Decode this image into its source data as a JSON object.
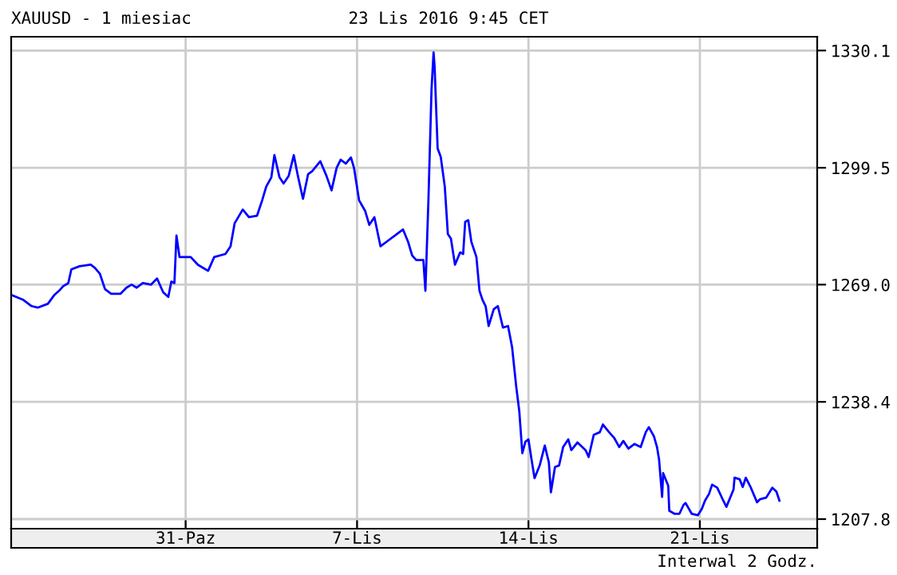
{
  "chart_data": {
    "type": "line",
    "title": "XAUUSD - 1 miesiac",
    "subtitle": "23 Lis 2016 9:45 CET",
    "annotations": [
      "Interwal 2 Godz."
    ],
    "x": [
      "2016-10-23T22:00",
      "2016-10-24T09:00",
      "2016-10-24T17:00",
      "2016-10-24T23:00",
      "2016-10-25T09:00",
      "2016-10-25T15:00",
      "2016-10-25T20:00",
      "2016-10-26T00:00",
      "2016-10-26T05:00",
      "2016-10-26T08:00",
      "2016-10-26T16:00",
      "2016-10-27T03:00",
      "2016-10-27T07:00",
      "2016-10-27T12:00",
      "2016-10-27T17:00",
      "2016-10-27T23:00",
      "2016-10-28T08:00",
      "2016-10-28T14:00",
      "2016-10-28T19:00",
      "2016-10-29T00:00",
      "2016-10-29T06:00",
      "2016-10-29T14:00",
      "2016-10-29T20:00",
      "2016-10-30T02:00",
      "2016-10-30T07:00",
      "2016-10-30T10:00",
      "2016-10-30T13:00",
      "2016-10-30T15:00",
      "2016-10-30T18:00",
      "2016-10-31T05:00",
      "2016-10-31T12:00",
      "2016-10-31T22:00",
      "2016-11-01T04:00",
      "2016-11-01T15:00",
      "2016-11-01T20:00",
      "2016-11-02T00:00",
      "2016-11-02T08:00",
      "2016-11-02T14:00",
      "2016-11-02T22:00",
      "2016-11-03T03:00",
      "2016-11-03T07:00",
      "2016-11-03T12:00",
      "2016-11-03T15:00",
      "2016-11-03T20:00",
      "2016-11-04T00:00",
      "2016-11-04T05:00",
      "2016-11-04T10:00",
      "2016-11-04T14:00",
      "2016-11-04T19:00",
      "2016-11-05T00:00",
      "2016-11-05T04:00",
      "2016-11-05T12:00",
      "2016-11-05T18:00",
      "2016-11-05T23:00",
      "2016-11-06T04:00",
      "2016-11-06T08:00",
      "2016-11-06T13:00",
      "2016-11-06T18:00",
      "2016-11-06T21:00",
      "2016-11-07T02:00",
      "2016-11-07T08:00",
      "2016-11-07T12:00",
      "2016-11-07T17:00",
      "2016-11-07T23:00",
      "2016-11-08T07:00",
      "2016-11-08T15:00",
      "2016-11-08T21:00",
      "2016-11-09T02:00",
      "2016-11-09T06:00",
      "2016-11-09T10:00",
      "2016-11-09T17:00",
      "2016-11-09T19:00",
      "2016-11-09T22:00",
      "2016-11-10T01:00",
      "2016-11-10T03:00",
      "2016-11-10T04:00",
      "2016-11-10T07:00",
      "2016-11-10T10:00",
      "2016-11-10T14:00",
      "2016-11-10T17:00",
      "2016-11-10T20:00",
      "2016-11-11T00:00",
      "2016-11-11T05:00",
      "2016-11-11T08:00",
      "2016-11-11T10:00",
      "2016-11-11T13:00",
      "2016-11-11T16:00",
      "2016-11-11T21:00",
      "2016-11-12T00:00",
      "2016-11-12T03:00",
      "2016-11-12T06:00",
      "2016-11-12T09:00",
      "2016-11-12T14:00",
      "2016-11-12T18:00",
      "2016-11-12T23:00",
      "2016-11-13T04:00",
      "2016-11-13T08:00",
      "2016-11-13T12:00",
      "2016-11-13T15:00",
      "2016-11-13T18:00",
      "2016-11-13T21:00",
      "2016-11-14T00:00",
      "2016-11-14T03:00",
      "2016-11-14T06:00",
      "2016-11-14T11:00",
      "2016-11-14T16:00",
      "2016-11-14T20:00",
      "2016-11-14T22:00",
      "2016-11-15T02:00",
      "2016-11-15T06:00",
      "2016-11-15T10:00",
      "2016-11-15T15:00",
      "2016-11-15T18:00",
      "2016-11-16T00:00",
      "2016-11-16T08:00",
      "2016-11-16T11:00",
      "2016-11-16T16:00",
      "2016-11-16T22:00",
      "2016-11-17T01:00",
      "2016-11-17T07:00",
      "2016-11-17T12:00",
      "2016-11-17T17:00",
      "2016-11-17T21:00",
      "2016-11-18T02:00",
      "2016-11-18T08:00",
      "2016-11-18T14:00",
      "2016-11-18T19:00",
      "2016-11-18T22:00",
      "2016-11-19T03:00",
      "2016-11-19T06:00",
      "2016-11-19T08:00",
      "2016-11-19T11:00",
      "2016-11-19T12:00",
      "2016-11-19T17:00",
      "2016-11-19T18:00",
      "2016-11-19T23:00",
      "2016-11-20T04:00",
      "2016-11-20T08:00",
      "2016-11-20T10:00",
      "2016-11-20T16:00",
      "2016-11-20T22:00",
      "2016-11-21T02:00",
      "2016-11-21T05:00",
      "2016-11-21T09:00",
      "2016-11-21T12:00",
      "2016-11-21T17:00",
      "2016-11-21T23:00",
      "2016-11-22T02:00",
      "2016-11-22T09:00",
      "2016-11-22T10:00",
      "2016-11-22T15:00",
      "2016-11-22T18:00",
      "2016-11-22T21:00",
      "2016-11-23T02:00",
      "2016-11-23T08:00",
      "2016-11-23T11:00",
      "2016-11-23T17:00",
      "2016-11-23T23:00",
      "2016-11-24T03:00",
      "2016-11-24T06:00"
    ],
    "series": [
      {
        "color": "#0000ff",
        "values": [
          1266.2,
          1265,
          1263.4,
          1263,
          1264,
          1266.2,
          1267.4,
          1268.6,
          1269.4,
          1273,
          1273.8,
          1274.2,
          1273.4,
          1271.8,
          1267.8,
          1266.6,
          1266.6,
          1268.2,
          1269,
          1268.2,
          1269.4,
          1269,
          1270.6,
          1267,
          1265.8,
          1269.8,
          1269.4,
          1281.8,
          1276.2,
          1276.2,
          1274.2,
          1272.6,
          1276.2,
          1277,
          1279,
          1285,
          1288.6,
          1286.6,
          1287,
          1291,
          1294.6,
          1297,
          1302.8,
          1297,
          1295.4,
          1297.4,
          1302.8,
          1297.4,
          1291.4,
          1297.8,
          1298.6,
          1301.2,
          1297.4,
          1293.6,
          1299.5,
          1301.6,
          1300.6,
          1302.2,
          1299.5,
          1291,
          1288.2,
          1284.6,
          1286.6,
          1279,
          1280.6,
          1282.2,
          1283.4,
          1280.2,
          1276.6,
          1275.4,
          1275.4,
          1267.4,
          1291.4,
          1320,
          1329.6,
          1326,
          1304.5,
          1302.4,
          1294.6,
          1282.2,
          1281,
          1274.2,
          1277.4,
          1277,
          1285.4,
          1285.8,
          1280.2,
          1276.2,
          1267.4,
          1265,
          1263.4,
          1258.2,
          1262.6,
          1263.4,
          1257.8,
          1258.2,
          1252.6,
          1242.4,
          1236,
          1225,
          1228,
          1228.6,
          1223.4,
          1218.5,
          1221.8,
          1227,
          1222.6,
          1214.8,
          1221.4,
          1221.8,
          1226.6,
          1228.6,
          1225.8,
          1227.8,
          1225.8,
          1224,
          1229.8,
          1230.5,
          1232.5,
          1230.5,
          1229,
          1226.6,
          1228.2,
          1226.2,
          1227.4,
          1226.6,
          1230.5,
          1231.8,
          1229.4,
          1226.6,
          1223.4,
          1213.6,
          1219.8,
          1216.5,
          1210,
          1209.2,
          1209.2,
          1211.5,
          1212,
          1209.2,
          1208.8,
          1210.5,
          1212.6,
          1214.4,
          1216.8,
          1216,
          1212.6,
          1211,
          1215.5,
          1218.6,
          1218.2,
          1216.2,
          1218.6,
          1216,
          1212.2,
          1213,
          1213.4,
          1216,
          1215,
          1212.6
        ]
      }
    ],
    "xlim": [
      "2016-10-23T21:00",
      "2016-11-25T19:00"
    ],
    "xticks": [
      {
        "value": "2016-10-31",
        "label": "31-Paz"
      },
      {
        "value": "2016-11-07",
        "label": "7-Lis"
      },
      {
        "value": "2016-11-14",
        "label": "14-Lis"
      },
      {
        "value": "2016-11-21",
        "label": "21-Lis"
      }
    ],
    "ylim": [
      1205.3,
      1333.7
    ],
    "yticks": [
      {
        "value": 1207.8,
        "label": "1207.8"
      },
      {
        "value": 1238.4,
        "label": "1238.4"
      },
      {
        "value": 1269.0,
        "label": "1269.0"
      },
      {
        "value": 1299.5,
        "label": "1299.5"
      },
      {
        "value": 1330.1,
        "label": "1330.1"
      }
    ],
    "grid": true,
    "legend": false
  }
}
